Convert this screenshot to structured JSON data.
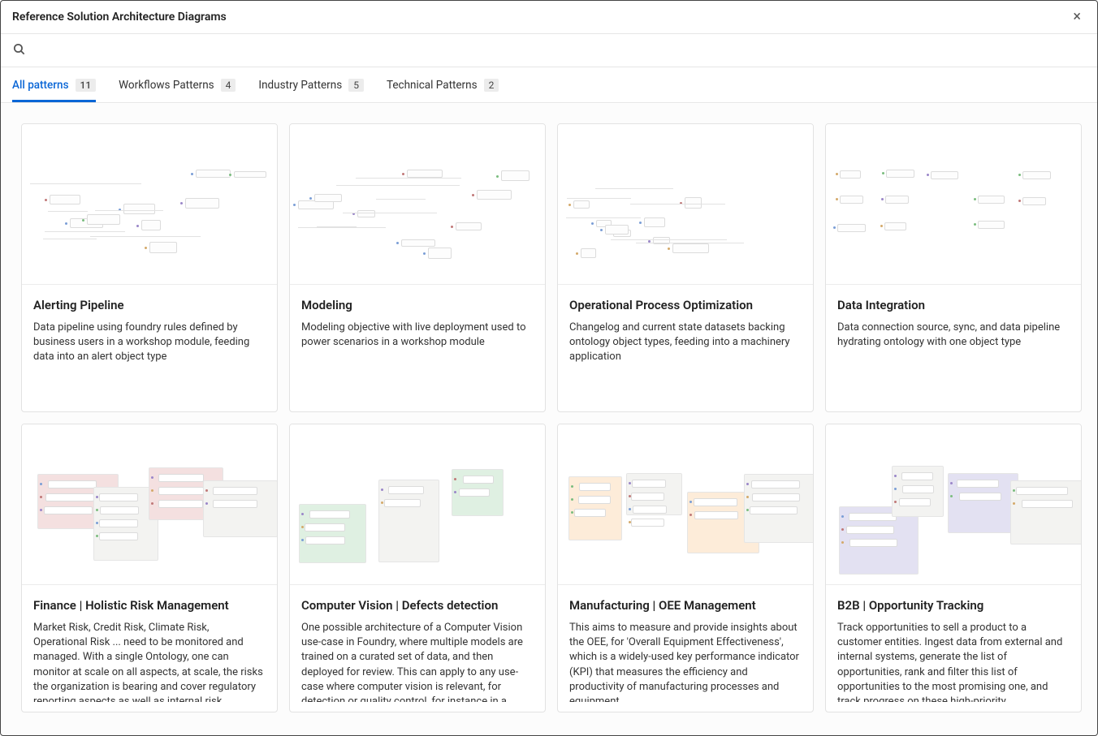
{
  "header": {
    "title": "Reference Solution Architecture Diagrams"
  },
  "search": {
    "placeholder": ""
  },
  "tabs": [
    {
      "label": "All patterns",
      "count": "11",
      "active": true
    },
    {
      "label": "Workflows Patterns",
      "count": "4",
      "active": false
    },
    {
      "label": "Industry Patterns",
      "count": "5",
      "active": false
    },
    {
      "label": "Technical Patterns",
      "count": "2",
      "active": false
    }
  ],
  "active_tab_color": "#0a66d6",
  "cards": [
    {
      "title": "Alerting Pipeline",
      "desc": "Data pipeline using foundry rules defined by business users in a workshop module, feeding data into an alert object type",
      "preview": "sparse_flow",
      "preview_tints": []
    },
    {
      "title": "Modeling",
      "desc": "Modeling objective with live deployment used to power scenarios in a workshop module",
      "preview": "sparse_flow",
      "preview_tints": []
    },
    {
      "title": "Operational Process Optimization",
      "desc": "Changelog and current state datasets backing ontology object types, feeding into a machinery application",
      "preview": "sparse_flow",
      "preview_tints": []
    },
    {
      "title": "Data Integration",
      "desc": "Data connection source, sync, and data pipeline hydrating ontology with one object type",
      "preview": "grid_flow",
      "preview_tints": []
    },
    {
      "title": "Finance | Holistic Risk Management",
      "desc": "Market Risk, Credit Risk, Climate Risk, Operational Risk ... need to be monitored and managed. With a single Ontology, one can monitor at scale on all aspects, at scale, the risks the organization is bearing and cover regulatory reporting aspects as well as internal risk analytics.",
      "preview": "dense_groups",
      "preview_tints": [
        "#f4e0e0"
      ]
    },
    {
      "title": "Computer Vision | Defects detection",
      "desc": "One possible architecture of a Computer Vision use-case in Foundry, where multiple models are trained on a curated set of data, and then deployed for review. This can apply to any use-case where computer vision is relevant, for detection or quality control, for instance in a manufacturing context.",
      "preview": "dense_groups",
      "preview_tints": [
        "#dff0e2",
        "#f4e0e0"
      ]
    },
    {
      "title": "Manufacturing | OEE Management",
      "desc": "This aims to measure and provide insights about the OEE, for 'Overall Equipment Effectiveness', which is a widely-used key performance indicator (KPI) that measures the efficiency and productivity of manufacturing processes and equipment.",
      "preview": "dense_groups",
      "preview_tints": [
        "#fdecd9",
        "#e2e2f6"
      ]
    },
    {
      "title": "B2B | Opportunity Tracking",
      "desc": "Track opportunities to sell a product to a customer entities. Ingest data from external and internal systems, generate the list of opportunities, rank and filter this list of opportunities to the most promising one, and track progress on these high-priority opportunities.",
      "preview": "dense_groups",
      "preview_tints": [
        "#e3e1f2"
      ]
    }
  ],
  "preview_style": {
    "node_border": "#dcdcdc",
    "node_bg": "#fdfdfd",
    "dot_colors": [
      "#c07878",
      "#7a9ed6",
      "#7bbd7f",
      "#d4a96a",
      "#9a86c9"
    ]
  }
}
